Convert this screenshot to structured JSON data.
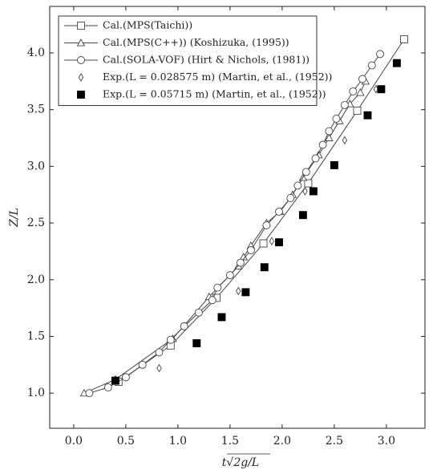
{
  "chart_data": {
    "type": "line",
    "xlabel": "t√2g/L",
    "ylabel": "Z/L",
    "xlim": [
      -0.23,
      3.37
    ],
    "ylim": [
      0.69,
      4.41
    ],
    "xticks": [
      {
        "value": 0,
        "label": "0.0"
      },
      {
        "value": 0.5,
        "label": "0.5"
      },
      {
        "value": 1,
        "label": "1.0"
      },
      {
        "value": 1.5,
        "label": "1.5"
      },
      {
        "value": 2,
        "label": "2.0"
      },
      {
        "value": 2.5,
        "label": "2.5"
      },
      {
        "value": 3,
        "label": "3.0"
      }
    ],
    "yticks": [
      {
        "value": 1,
        "label": "1.0"
      },
      {
        "value": 1.5,
        "label": "1.5"
      },
      {
        "value": 2,
        "label": "2.0"
      },
      {
        "value": 2.5,
        "label": "2.5"
      },
      {
        "value": 3,
        "label": "3.0"
      },
      {
        "value": 3.5,
        "label": "3.5"
      },
      {
        "value": 4,
        "label": "4.0"
      }
    ],
    "legend": "upper left",
    "series": [
      {
        "name": "Cal.(MPS(Taichi))",
        "color": "#444444",
        "marker": "square",
        "line": true,
        "x": [
          0.43,
          0.93,
          1.37,
          1.82,
          2.25,
          2.72,
          3.17
        ],
        "values": [
          1.1,
          1.42,
          1.84,
          2.32,
          2.85,
          3.49,
          4.12
        ]
      },
      {
        "name": "Cal.(MPS(C++)) (Koshizuka, (1995))",
        "color": "#444444",
        "marker": "triangle",
        "line": true,
        "x": [
          0.1,
          0.4,
          0.95,
          1.3,
          1.58,
          1.63,
          1.7,
          1.85,
          1.98,
          2.1,
          2.2,
          2.35,
          2.45,
          2.55,
          2.65,
          2.75,
          2.8
        ],
        "values": [
          1.0,
          1.12,
          1.48,
          1.85,
          2.12,
          2.2,
          2.3,
          2.5,
          2.6,
          2.75,
          2.9,
          3.1,
          3.25,
          3.4,
          3.55,
          3.65,
          3.75
        ]
      },
      {
        "name": "Cal.(SOLA-VOF) (Hirt & Nichols, (1981))",
        "color": "#444444",
        "marker": "circle",
        "line": true,
        "x": [
          0.15,
          0.33,
          0.5,
          0.66,
          0.82,
          0.93,
          1.06,
          1.2,
          1.33,
          1.38,
          1.5,
          1.6,
          1.7,
          1.85,
          1.97,
          2.08,
          2.15,
          2.23,
          2.32,
          2.39,
          2.45,
          2.52,
          2.6,
          2.68,
          2.77,
          2.86,
          2.94
        ],
        "values": [
          1.0,
          1.05,
          1.14,
          1.25,
          1.36,
          1.47,
          1.59,
          1.71,
          1.82,
          1.93,
          2.04,
          2.15,
          2.26,
          2.48,
          2.6,
          2.72,
          2.83,
          2.95,
          3.07,
          3.19,
          3.31,
          3.42,
          3.54,
          3.66,
          3.77,
          3.89,
          3.99
        ]
      },
      {
        "name": "Exp.(L = 0.028575 m) (Martin, et al., (1952))",
        "color": "#444444",
        "marker": "diamond",
        "line": false,
        "x": [
          0.4,
          0.82,
          1.58,
          1.9,
          2.22,
          2.6,
          2.9
        ],
        "values": [
          1.12,
          1.22,
          1.9,
          2.34,
          2.78,
          3.23,
          3.68
        ]
      },
      {
        "name": "Exp.(L = 0.05715 m) (Martin, et al., (1952))",
        "color": "#000000",
        "marker": "filled-square",
        "line": false,
        "x": [
          0.4,
          1.18,
          1.42,
          1.65,
          1.83,
          1.97,
          2.2,
          2.3,
          2.5,
          2.82,
          2.95,
          3.1
        ],
        "values": [
          1.11,
          1.44,
          1.67,
          1.89,
          2.11,
          2.33,
          2.57,
          2.78,
          3.01,
          3.45,
          3.68,
          3.91
        ]
      }
    ]
  }
}
